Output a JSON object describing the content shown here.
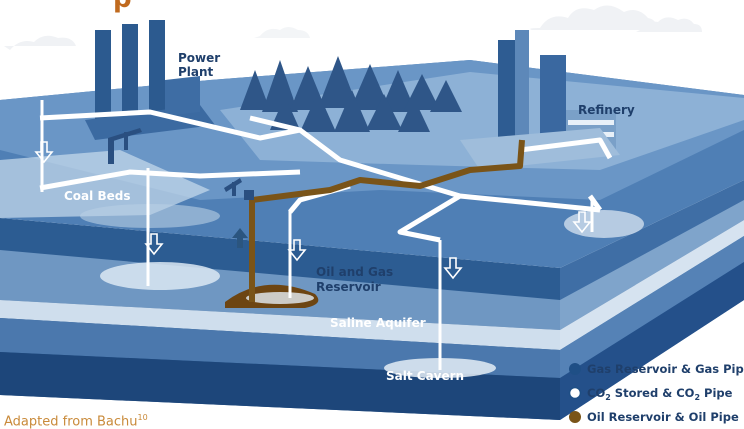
{
  "labels": {
    "power_plant": [
      "Power",
      "Plant"
    ],
    "refinery": "Refinery",
    "coal_beds": "Coal Beds",
    "oil_gas_reservoir": [
      "Oil and Gas",
      "Reservoir"
    ],
    "saline_aquifer": "Saline Aquifer",
    "salt_cavern": "Salt Cavern"
  },
  "legend": [
    {
      "text": "Gas Reservoir & Gas Pipe",
      "marker": "filled-blue"
    },
    {
      "text_parts": [
        "CO",
        "2",
        " Stored & CO",
        "2",
        " Pipe"
      ],
      "marker": "hollow-white"
    },
    {
      "text": "Oil Reservoir & Oil Pipe",
      "marker": "filled-brown"
    }
  ],
  "caption": {
    "text": "Adapted from Bachu",
    "ref": "10"
  },
  "title_fragment": "p",
  "colors": {
    "deep_blue": "#1f4f86",
    "mid_blue": "#3d6fa6",
    "light_blue": "#a9c3dc",
    "pale_blue": "#d4e2ef",
    "oil_brown": "#7a5418",
    "sky": "#ffffff"
  }
}
